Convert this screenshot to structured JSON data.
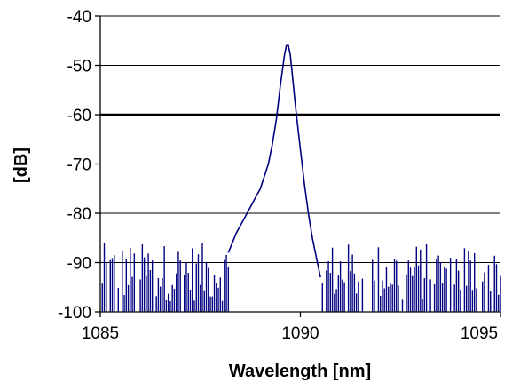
{
  "chart_data": {
    "type": "line",
    "title": "",
    "xlabel": "Wavelength [nm]",
    "ylabel": "[dB]",
    "xlim": [
      1085,
      1095
    ],
    "ylim": [
      -100,
      -40
    ],
    "x_ticks": [
      1085,
      1090,
      1095
    ],
    "x_tick_labels": [
      "1085",
      "1090",
      "1095"
    ],
    "y_ticks": [
      -100,
      -90,
      -80,
      -70,
      -60,
      -50,
      -40
    ],
    "y_tick_labels": [
      "-100",
      "-90",
      "-80",
      "-70",
      "-60",
      "-50",
      "-40"
    ],
    "grid": "horizontal",
    "highlighted_gridline": -60,
    "legend": "none",
    "colors": {
      "series": "#000080",
      "grid": "#000000",
      "background": "#ffffff"
    },
    "series": [
      {
        "x": [
          1088.2,
          1088.4,
          1088.6,
          1088.8,
          1089.0,
          1089.2,
          1089.3,
          1089.4,
          1089.5,
          1089.6,
          1089.65,
          1089.7,
          1089.75,
          1089.8,
          1089.85,
          1089.9,
          1090.0,
          1090.1,
          1090.2,
          1090.3,
          1090.4,
          1090.5
        ],
        "y": [
          -88,
          -84,
          -81,
          -78,
          -75,
          -70,
          -66,
          -61,
          -54,
          -48,
          -46,
          -46,
          -48,
          -52,
          -56,
          -60,
          -67,
          -74,
          -80,
          -85,
          -89,
          -93
        ]
      }
    ],
    "noise_floor": {
      "x_range": [
        1085,
        1095
      ],
      "gap": [
        1088.2,
        1090.5
      ],
      "y_range": [
        -100,
        -86
      ]
    }
  }
}
